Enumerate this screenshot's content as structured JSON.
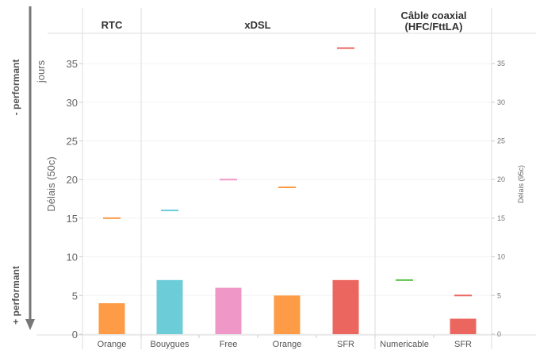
{
  "chart_data": {
    "type": "bar",
    "title": "",
    "ylabel": "Délais (50c)",
    "ylabel_unit": "jours",
    "y2label": "Délais (95c)",
    "ylim": [
      0,
      38
    ],
    "yticks": [
      0,
      5,
      10,
      15,
      20,
      25,
      30,
      35
    ],
    "groups": [
      {
        "label": "RTC",
        "categories": [
          "Orange"
        ]
      },
      {
        "label": "xDSL",
        "categories": [
          "Bouygues",
          "Free",
          "Orange",
          "SFR"
        ]
      },
      {
        "label_line1": "Câble coaxial",
        "label_line2": "(HFC/FttLA)",
        "categories": [
          "Numericable",
          "SFR"
        ]
      }
    ],
    "categories": [
      "Orange",
      "Bouygues",
      "Free",
      "Orange",
      "SFR",
      "Numericable",
      "SFR"
    ],
    "series": [
      {
        "name": "Délais (50c)",
        "type": "bar",
        "values": [
          4,
          7,
          6,
          5,
          7,
          0,
          2
        ]
      },
      {
        "name": "Délais (95c)",
        "type": "marker",
        "values": [
          15,
          16,
          20,
          19,
          37,
          7,
          5
        ]
      }
    ],
    "colors": [
      "#fd9b46",
      "#6ccdd9",
      "#ef98c8",
      "#fd9b46",
      "#ec6660",
      "#ec6660",
      "#ec6660"
    ],
    "marker_colors": [
      "#fd9b46",
      "#6ccdd9",
      "#ef98c8",
      "#fd9b46",
      "#ec6660",
      "#5cc24a",
      "#ec6660"
    ],
    "annotations": {
      "top": "- performant",
      "bottom": "+ performant"
    }
  }
}
